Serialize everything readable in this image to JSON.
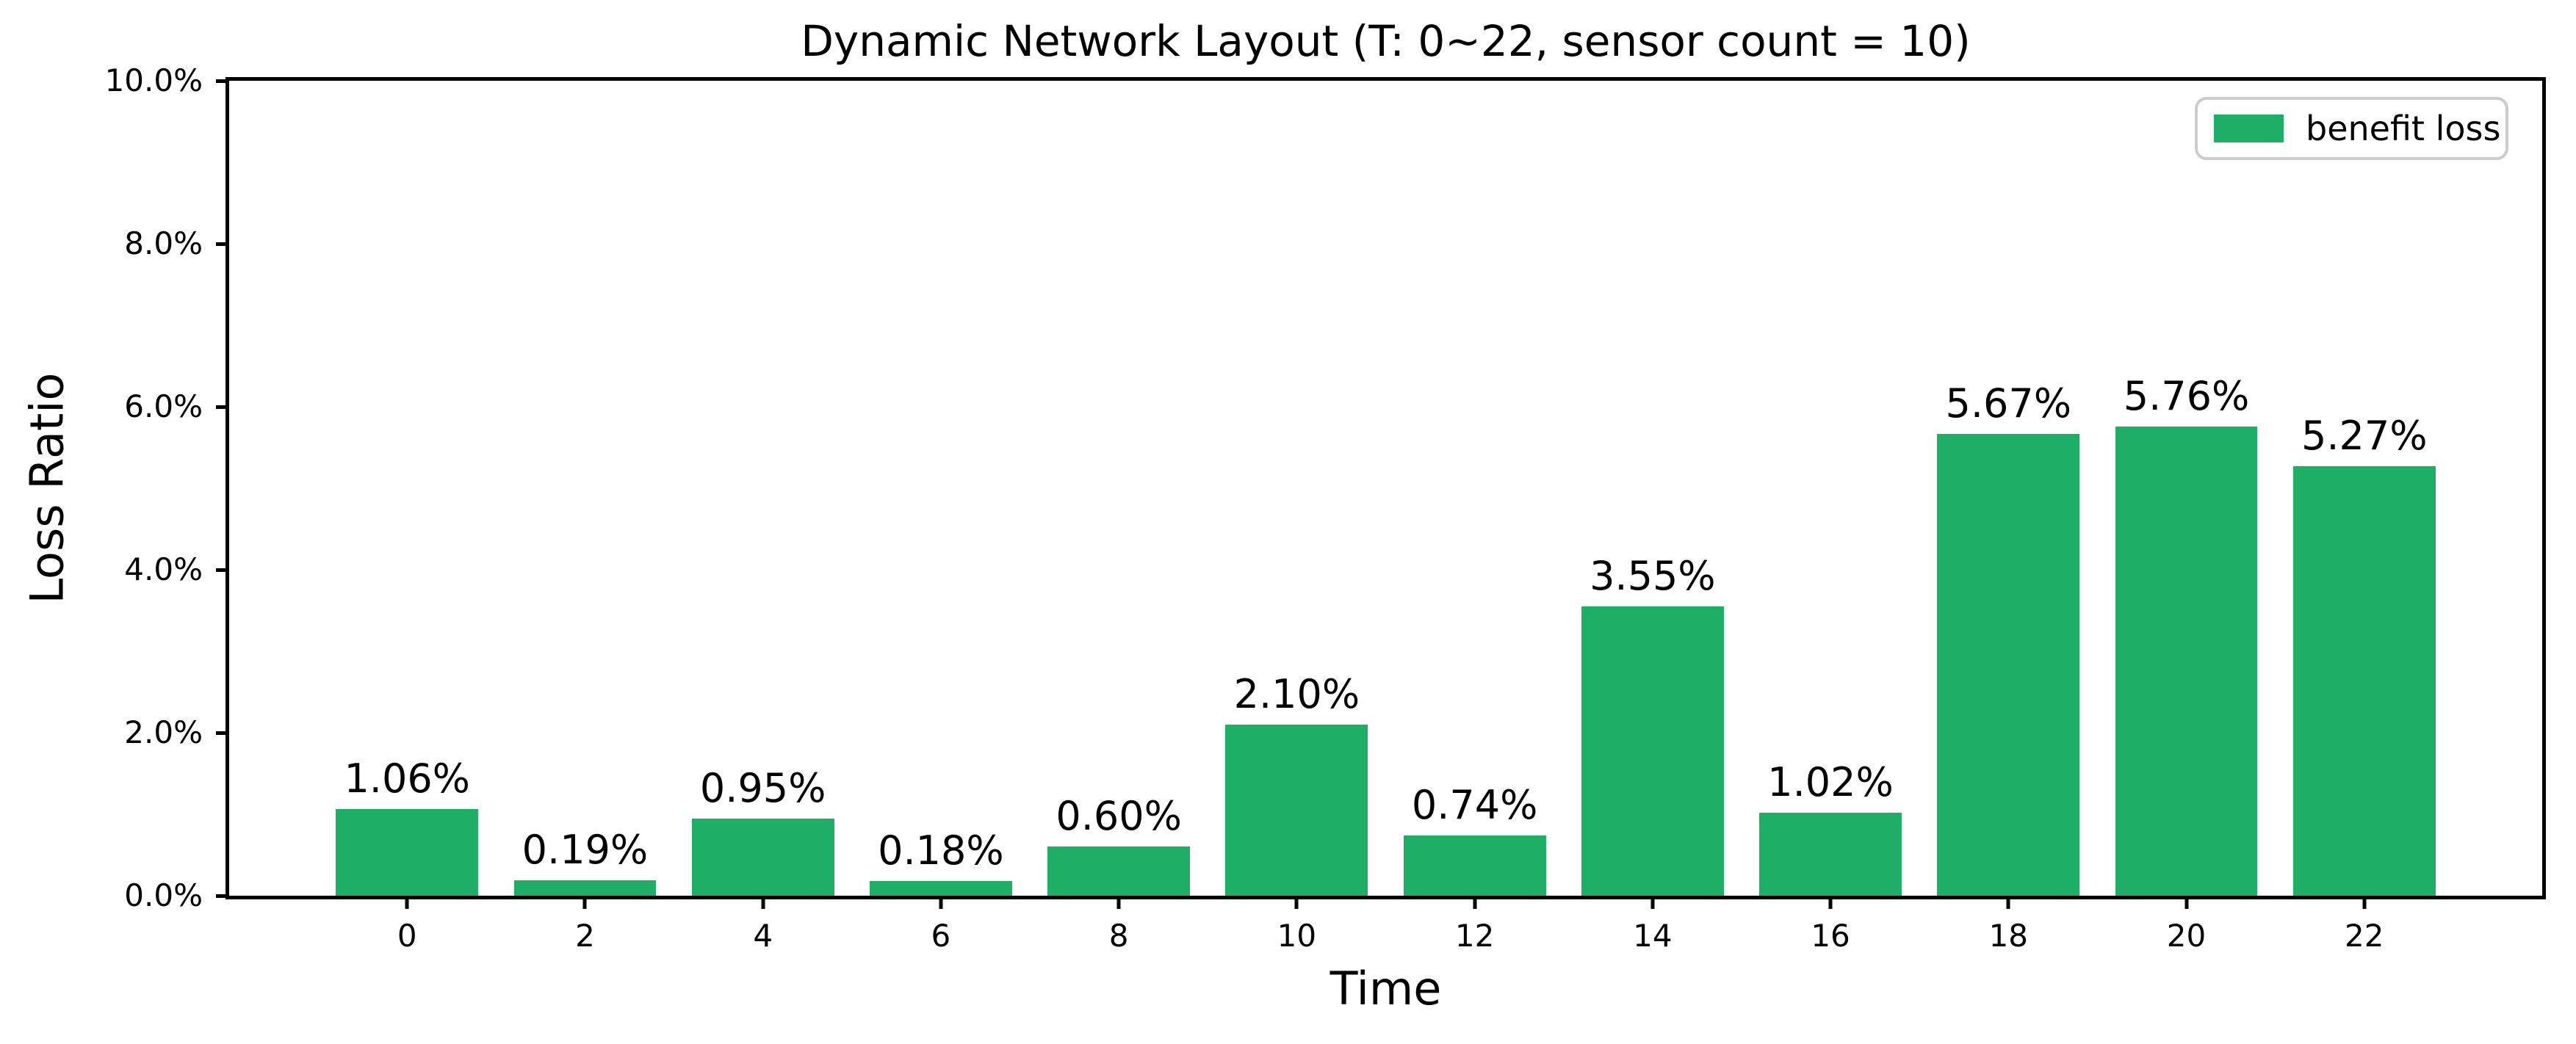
{
  "chart_data": {
    "type": "bar",
    "title": "Dynamic Network Layout (T: 0~22, sensor count = 10)",
    "xlabel": "Time",
    "ylabel": "Loss Ratio",
    "categories": [
      0,
      2,
      4,
      6,
      8,
      10,
      12,
      14,
      16,
      18,
      20,
      22
    ],
    "values": [
      1.06,
      0.19,
      0.95,
      0.18,
      0.6,
      2.1,
      0.74,
      3.55,
      1.02,
      5.67,
      5.76,
      5.27
    ],
    "bar_labels": [
      "1.06%",
      "0.19%",
      "0.95%",
      "0.18%",
      "0.60%",
      "2.10%",
      "0.74%",
      "3.55%",
      "1.02%",
      "5.67%",
      "5.76%",
      "5.27%"
    ],
    "yticks": [
      "0.0%",
      "2.0%",
      "4.0%",
      "6.0%",
      "8.0%",
      "10.0%"
    ],
    "ylim": [
      0,
      10
    ],
    "xlim": [
      -2,
      24
    ],
    "bar_width_units": 1.6,
    "grid": false,
    "legend": {
      "label": "benefit loss",
      "position": "upper right"
    },
    "colors": {
      "bar": "#1eae66",
      "legend_border": "#cccccc",
      "axis": "#000000",
      "background": "#ffffff"
    }
  }
}
